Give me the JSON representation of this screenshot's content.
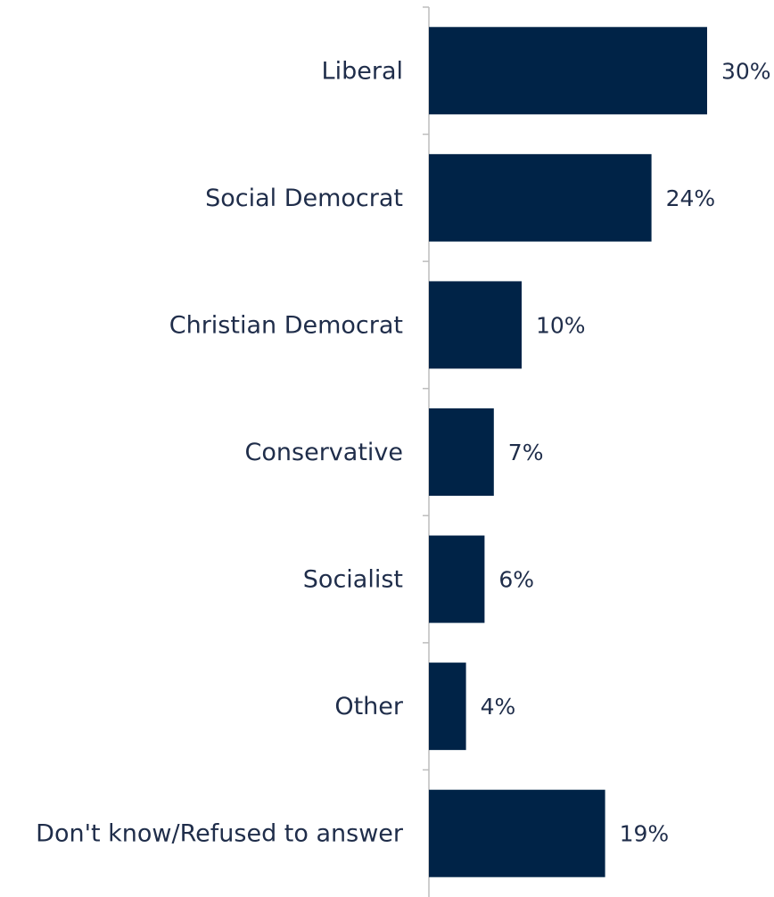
{
  "chart_data": {
    "type": "bar",
    "orientation": "horizontal",
    "categories": [
      "Liberal",
      "Social Democrat",
      "Christian Democrat",
      "Conservative",
      "Socialist",
      "Other",
      "Don't know/Refused to answer"
    ],
    "values": [
      30,
      24,
      10,
      7,
      6,
      4,
      19
    ],
    "value_labels": [
      "30%",
      "24%",
      "10%",
      "7%",
      "6%",
      "4%",
      "19%"
    ],
    "unit": "%",
    "title": "",
    "xlabel": "",
    "ylabel": "",
    "xlim": [
      0,
      30
    ],
    "grid": false,
    "legend": "none",
    "colors": {
      "bar": "#002347",
      "text": "#1f2d4a",
      "axis": "#bdbdbd"
    }
  }
}
